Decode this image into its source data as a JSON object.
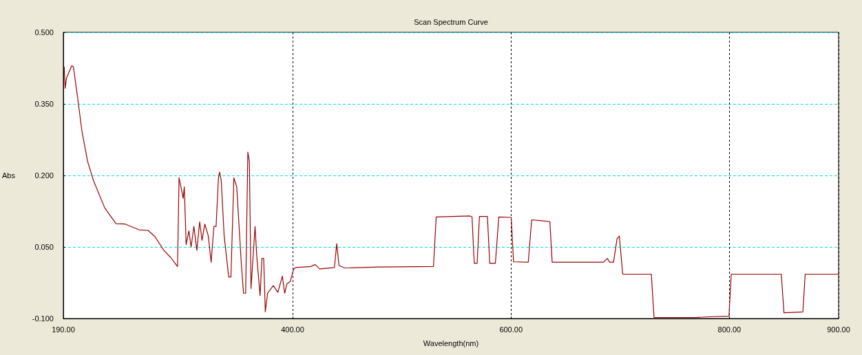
{
  "chart_data": {
    "type": "line",
    "title": "Scan Spectrum Curve",
    "xlabel": "Wavelength(nm)",
    "ylabel": "Abs",
    "marker": "none",
    "grid": true,
    "xlim": [
      190,
      900
    ],
    "xticks": [
      {
        "value": 190,
        "label": "190.00"
      },
      {
        "value": 400,
        "label": "400.00"
      },
      {
        "value": 600,
        "label": "600.00"
      },
      {
        "value": 800,
        "label": "800.00"
      },
      {
        "value": 900,
        "label": "900.00"
      }
    ],
    "ylim": [
      -0.1,
      0.5
    ],
    "yticks": [
      {
        "value": -0.1,
        "label": "-0.100"
      },
      {
        "value": 0.05,
        "label": "0.050"
      },
      {
        "value": 0.2,
        "label": "0.200"
      },
      {
        "value": 0.35,
        "label": "0.350"
      },
      {
        "value": 0.5,
        "label": "0.500"
      }
    ],
    "series": [
      {
        "color": "#990000",
        "x": [
          190.8,
          191.7,
          192.9,
          194.6,
          197.7,
          199.2,
          203,
          207.1,
          212.3,
          217.5,
          227.9,
          238.3,
          246.7,
          259.2,
          267.5,
          273.8,
          282.1,
          288.3,
          294.6,
          296,
          297.7,
          299.8,
          300.8,
          302.5,
          305,
          307,
          309.6,
          312.3,
          314.9,
          317,
          319.6,
          322.7,
          325.4,
          327.9,
          329.9,
          332.1,
          333.1,
          334.6,
          337.3,
          341.5,
          343.5,
          346.2,
          348.8,
          353,
          355,
          357,
          359,
          360.4,
          361.9,
          365.6,
          367.3,
          370.2,
          371.9,
          373.5,
          375,
          377.1,
          382.3,
          386.5,
          390.6,
          392.7,
          394.8,
          397.9,
          401,
          403.1,
          416.4,
          420.6,
          424.8,
          438.3,
          440.4,
          442.5,
          447.7,
          479,
          529,
          531.5,
          562.3,
          564.3,
          566.3,
          569,
          571.1,
          578.4,
          580.5,
          585.7,
          588.8,
          600.2,
          602.3,
          615.8,
          618.9,
          628.3,
          635.6,
          637.7,
          684.6,
          688.3,
          690.4,
          693.9,
          697.1,
          699.2,
          702.3,
          728.5,
          731,
          768.4,
          785,
          799.6,
          801.7,
          847.5,
          850,
          867.3,
          869.4,
          900
        ],
        "values": [
          0.428,
          0.383,
          0.404,
          0.413,
          0.43,
          0.428,
          0.365,
          0.292,
          0.229,
          0.19,
          0.132,
          0.099,
          0.098,
          0.086,
          0.085,
          0.072,
          0.043,
          0.028,
          0.009,
          0.195,
          0.176,
          0.152,
          0.176,
          0.055,
          0.084,
          0.05,
          0.093,
          0.043,
          0.103,
          0.064,
          0.098,
          0.074,
          0.018,
          0.093,
          0.093,
          0.195,
          0.207,
          0.19,
          0.074,
          -0.013,
          -0.013,
          0.195,
          0.176,
          0.016,
          -0.047,
          -0.047,
          0.249,
          0.229,
          -0.037,
          0.093,
          0.026,
          -0.052,
          0.026,
          0.026,
          -0.086,
          -0.047,
          -0.031,
          -0.045,
          -0.011,
          -0.047,
          -0.027,
          -0.022,
          0.004,
          0.007,
          0.009,
          0.013,
          0.004,
          0.007,
          0.057,
          0.011,
          0.006,
          0.008,
          0.009,
          0.113,
          0.115,
          0.113,
          0.016,
          0.016,
          0.114,
          0.114,
          0.016,
          0.016,
          0.113,
          0.112,
          0.019,
          0.018,
          0.107,
          0.105,
          0.103,
          0.018,
          0.018,
          0.026,
          0.018,
          0.018,
          0.067,
          0.073,
          -0.007,
          -0.007,
          -0.098,
          -0.098,
          -0.096,
          -0.095,
          -0.007,
          -0.007,
          -0.088,
          -0.086,
          -0.007,
          -0.007
        ]
      }
    ]
  }
}
